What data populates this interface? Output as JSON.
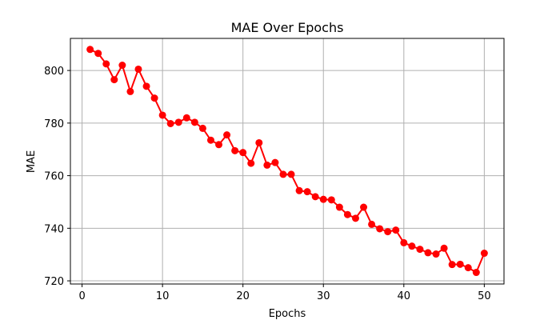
{
  "chart_data": {
    "type": "line",
    "title": "MAE Over Epochs",
    "xlabel": "Epochs",
    "ylabel": "MAE",
    "xlim": [
      -1.45,
      52.45
    ],
    "ylim": [
      718.8,
      812.2
    ],
    "xticks": [
      0,
      10,
      20,
      30,
      40,
      50
    ],
    "yticks": [
      720,
      740,
      760,
      780,
      800
    ],
    "grid": true,
    "color": "#ff0000",
    "marker": "circle",
    "series": [
      {
        "x": [
          1,
          2,
          3,
          4,
          5,
          6,
          7,
          8,
          9,
          10,
          11,
          12,
          13,
          14,
          15,
          16,
          17,
          18,
          19,
          20,
          21,
          22,
          23,
          24,
          25,
          26,
          27,
          28,
          29,
          30,
          31,
          32,
          33,
          34,
          35,
          36,
          37,
          38,
          39,
          40,
          41,
          42,
          43,
          44,
          45,
          46,
          47,
          48,
          49,
          50
        ],
        "y": [
          808,
          806.5,
          802.5,
          796.5,
          802,
          792,
          800.5,
          794,
          789.5,
          783,
          779.8,
          780.3,
          782,
          780.3,
          778,
          773.5,
          771.8,
          775.5,
          769.5,
          768.8,
          764.7,
          772.5,
          764,
          765,
          760.5,
          760.5,
          754.3,
          753.9,
          752,
          751,
          750.8,
          748,
          745.2,
          743.8,
          748,
          741.5,
          739.8,
          738.7,
          739.3,
          734.5,
          733.2,
          732,
          730.7,
          730.2,
          732.4,
          726.2,
          726.3,
          725,
          723.2,
          730.5
        ]
      }
    ]
  }
}
